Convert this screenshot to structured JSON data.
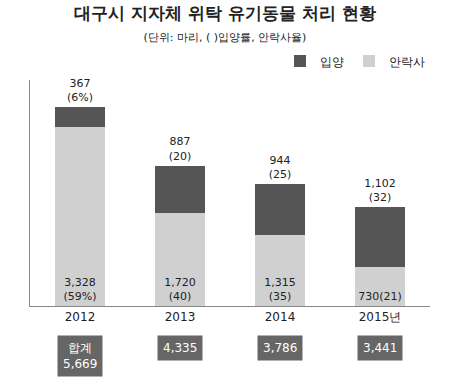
{
  "chart_data": {
    "type": "bar",
    "title": "대구시 지자체 위탁 유기동물 처리 현황",
    "subtitle": "(단위: 마리, ( )입양률, 안락사율)",
    "categories": [
      "2012",
      "2013",
      "2014",
      "2015년"
    ],
    "stacked": true,
    "data_labels": true,
    "tick_labels": "x",
    "grid": false,
    "legend": "top right",
    "ylim": [
      0,
      4200
    ],
    "series": [
      {
        "name": "안락사",
        "color": "#d0d0d0",
        "values": [
          3328,
          1720,
          1315,
          730
        ],
        "value_labels": [
          "3,328\n(59%)",
          "1,720\n(40)",
          "1,315\n(35)",
          "730(21)"
        ]
      },
      {
        "name": "입양",
        "color": "#555555",
        "values": [
          367,
          887,
          944,
          1102
        ],
        "value_labels": [
          "367\n(6%)",
          "887\n(20)",
          "944\n(25)",
          "1,102\n(32)"
        ]
      }
    ],
    "totals": {
      "label": "합계",
      "values": [
        5669,
        4335,
        3786,
        3441
      ],
      "value_labels": [
        "5,669",
        "4,335",
        "3,786",
        "3,441"
      ]
    }
  }
}
